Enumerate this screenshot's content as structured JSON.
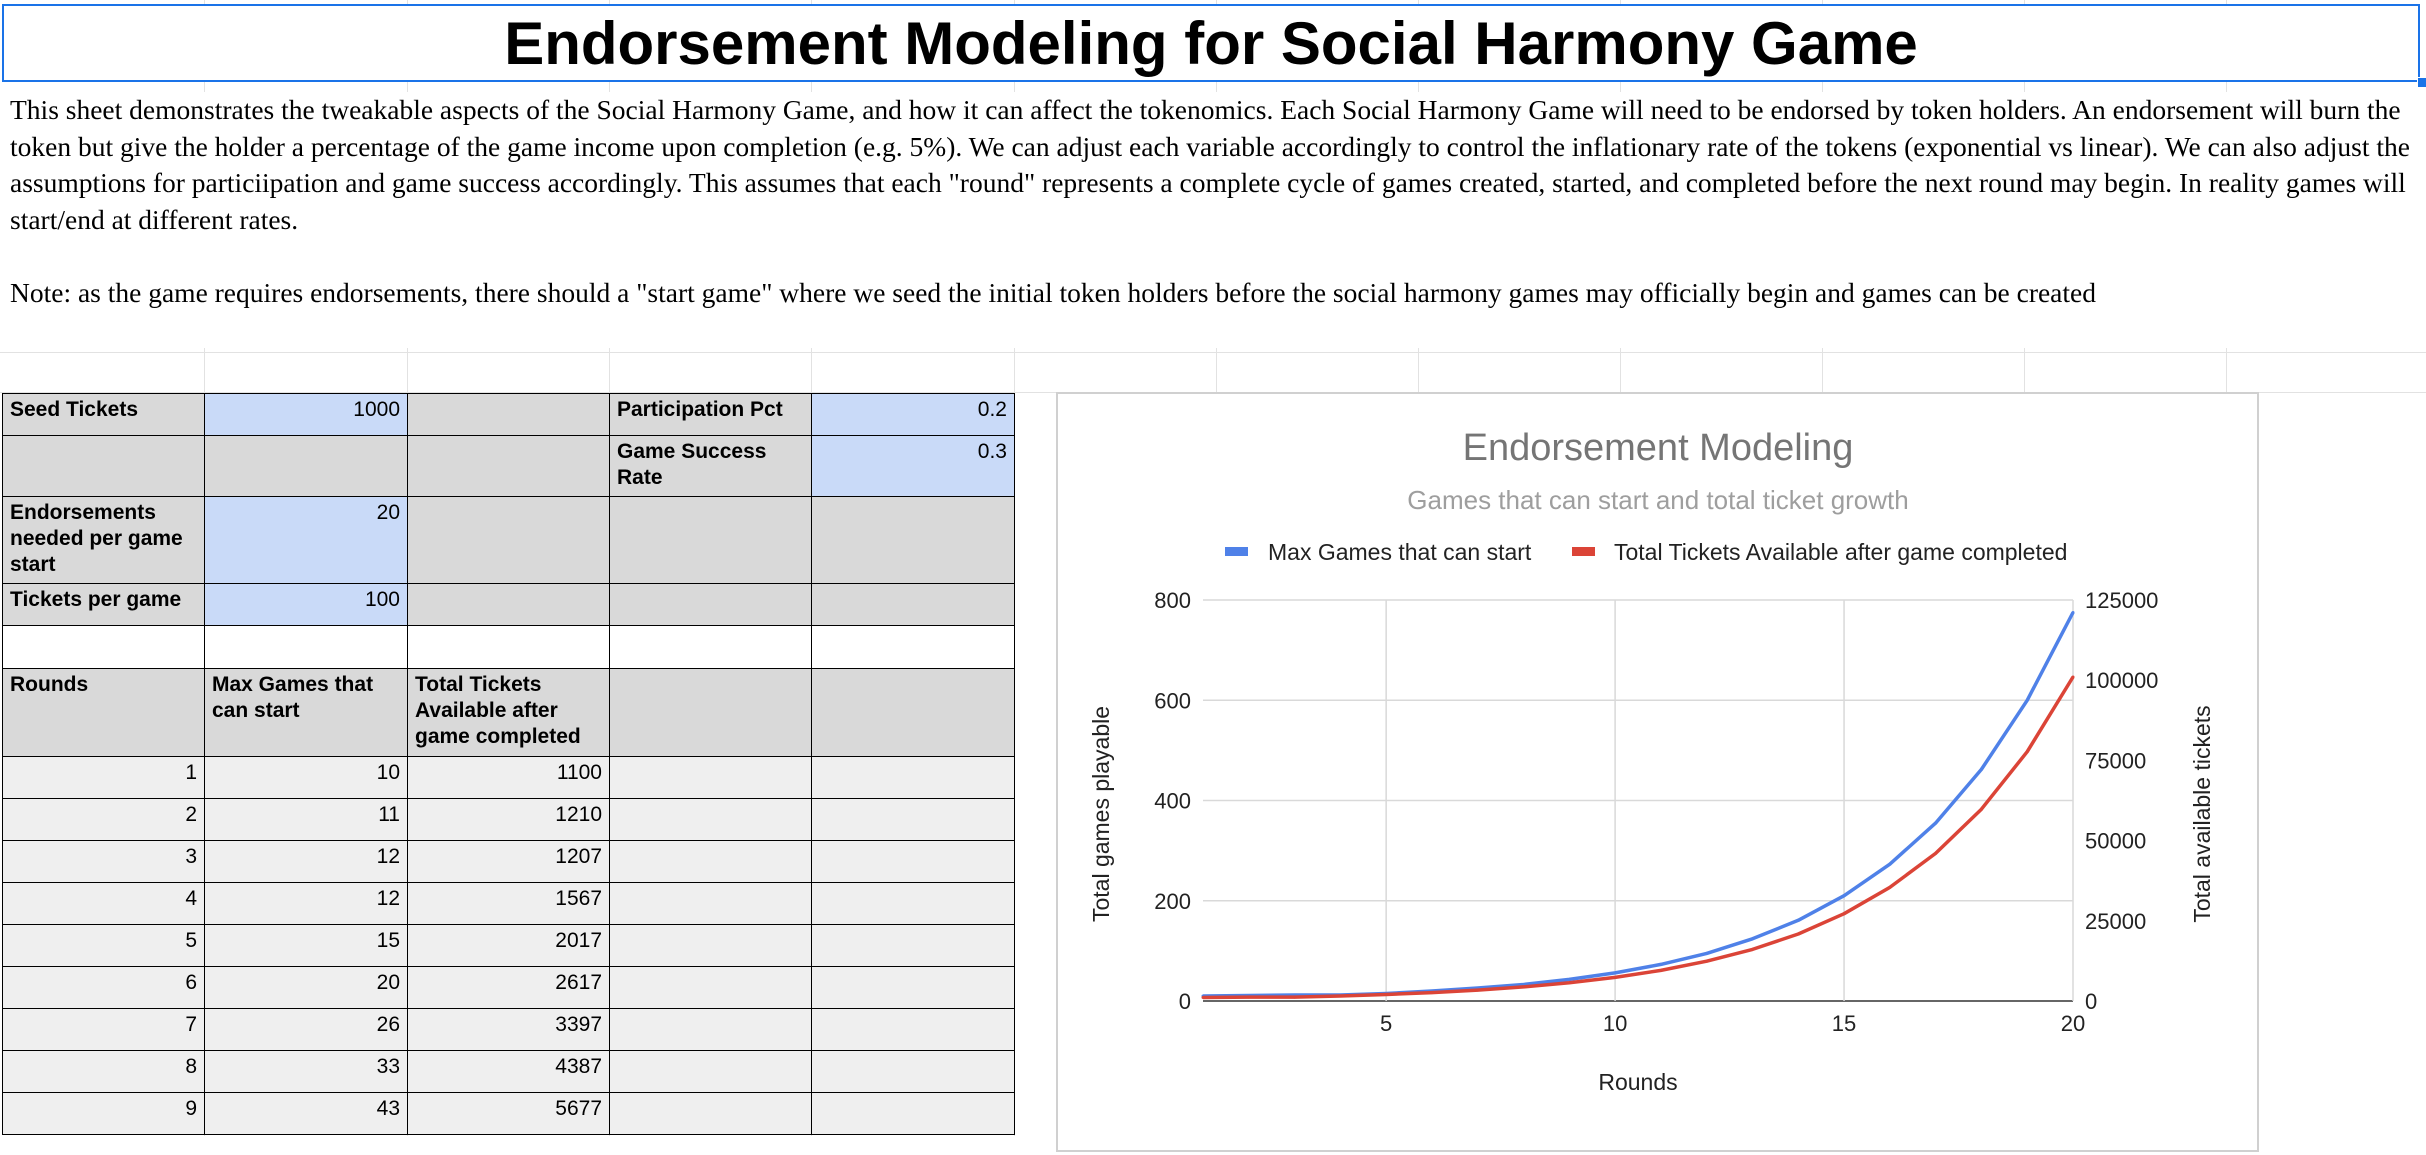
{
  "title": "Endorsement Modeling for Social Harmony Game",
  "description": {
    "paragraph1": "This sheet demonstrates the tweakable aspects of the Social Harmony Game, and how it can affect the tokenomics. Each Social Harmony Game will need to be endorsed by token holders. An endorsement will burn the token but give the holder a percentage of the game income upon completion (e.g. 5%). We can adjust each variable accordingly to control the inflationary rate of the tokens (exponential vs linear). We can also adjust the assumptions for particiipation and game success accordingly. This assumes that each \"round\" represents a complete cycle of games created, started, and completed before the next round may begin. In reality games will start/end at different rates.",
    "paragraph2": "Note: as the game requires endorsements, there should a \"start game\" where we seed the initial token holders before the social harmony games may officially begin and games can be created"
  },
  "params": {
    "seed_tickets_label": "Seed Tickets",
    "seed_tickets_value": "1000",
    "participation_label": "Participation Pct",
    "participation_value": "0.2",
    "success_label": "Game Success Rate",
    "success_value": "0.3",
    "endorsements_label": "Endorsements needed per game start",
    "endorsements_value": "20",
    "tickets_label": "Tickets per game",
    "tickets_value": "100"
  },
  "table": {
    "headers": [
      "Rounds",
      "Max Games that can start",
      "Total Tickets Available after game completed"
    ],
    "rows": [
      [
        "1",
        "10",
        "1100"
      ],
      [
        "2",
        "11",
        "1210"
      ],
      [
        "3",
        "12",
        "1207"
      ],
      [
        "4",
        "12",
        "1567"
      ],
      [
        "5",
        "15",
        "2017"
      ],
      [
        "6",
        "20",
        "2617"
      ],
      [
        "7",
        "26",
        "3397"
      ],
      [
        "8",
        "33",
        "4387"
      ],
      [
        "9",
        "43",
        "5677"
      ]
    ]
  },
  "colors": {
    "blue": "#4f81e8",
    "red": "#db4437",
    "input_fill": "#c9daf8",
    "header_fill": "#d9d9d9",
    "selection": "#1a73e8"
  },
  "chart_data": {
    "type": "line",
    "title": "Endorsement Modeling",
    "subtitle": "Games that can start and total ticket growth",
    "xlabel": "Rounds",
    "ylabel_left": "Total games playable",
    "ylabel_right": "Total available tickets",
    "xlim": [
      1,
      20
    ],
    "ylim_left": [
      0,
      800
    ],
    "ylim_right": [
      0,
      125000
    ],
    "x_ticks": [
      5,
      10,
      15,
      20
    ],
    "y_ticks_left": [
      0,
      200,
      400,
      600,
      800
    ],
    "y_ticks_right": [
      0,
      25000,
      50000,
      75000,
      100000,
      125000
    ],
    "legend_position": "top",
    "grid": true,
    "x": [
      1,
      2,
      3,
      4,
      5,
      6,
      7,
      8,
      9,
      10,
      11,
      12,
      13,
      14,
      15,
      16,
      17,
      18,
      19,
      20
    ],
    "series": [
      {
        "name": "Max Games that can start",
        "axis": "left",
        "color": "#4f81e8",
        "values": [
          10,
          11,
          12,
          12,
          15,
          20,
          26,
          33,
          43,
          56,
          73,
          95,
          124,
          161,
          210,
          273,
          355,
          462,
          600,
          775
        ]
      },
      {
        "name": "Total Tickets Available after game completed",
        "axis": "right",
        "color": "#db4437",
        "values": [
          1100,
          1210,
          1207,
          1567,
          2017,
          2617,
          3397,
          4387,
          5677,
          7350,
          9550,
          12400,
          16100,
          20900,
          27200,
          35400,
          46000,
          59800,
          77700,
          101000
        ]
      }
    ]
  }
}
